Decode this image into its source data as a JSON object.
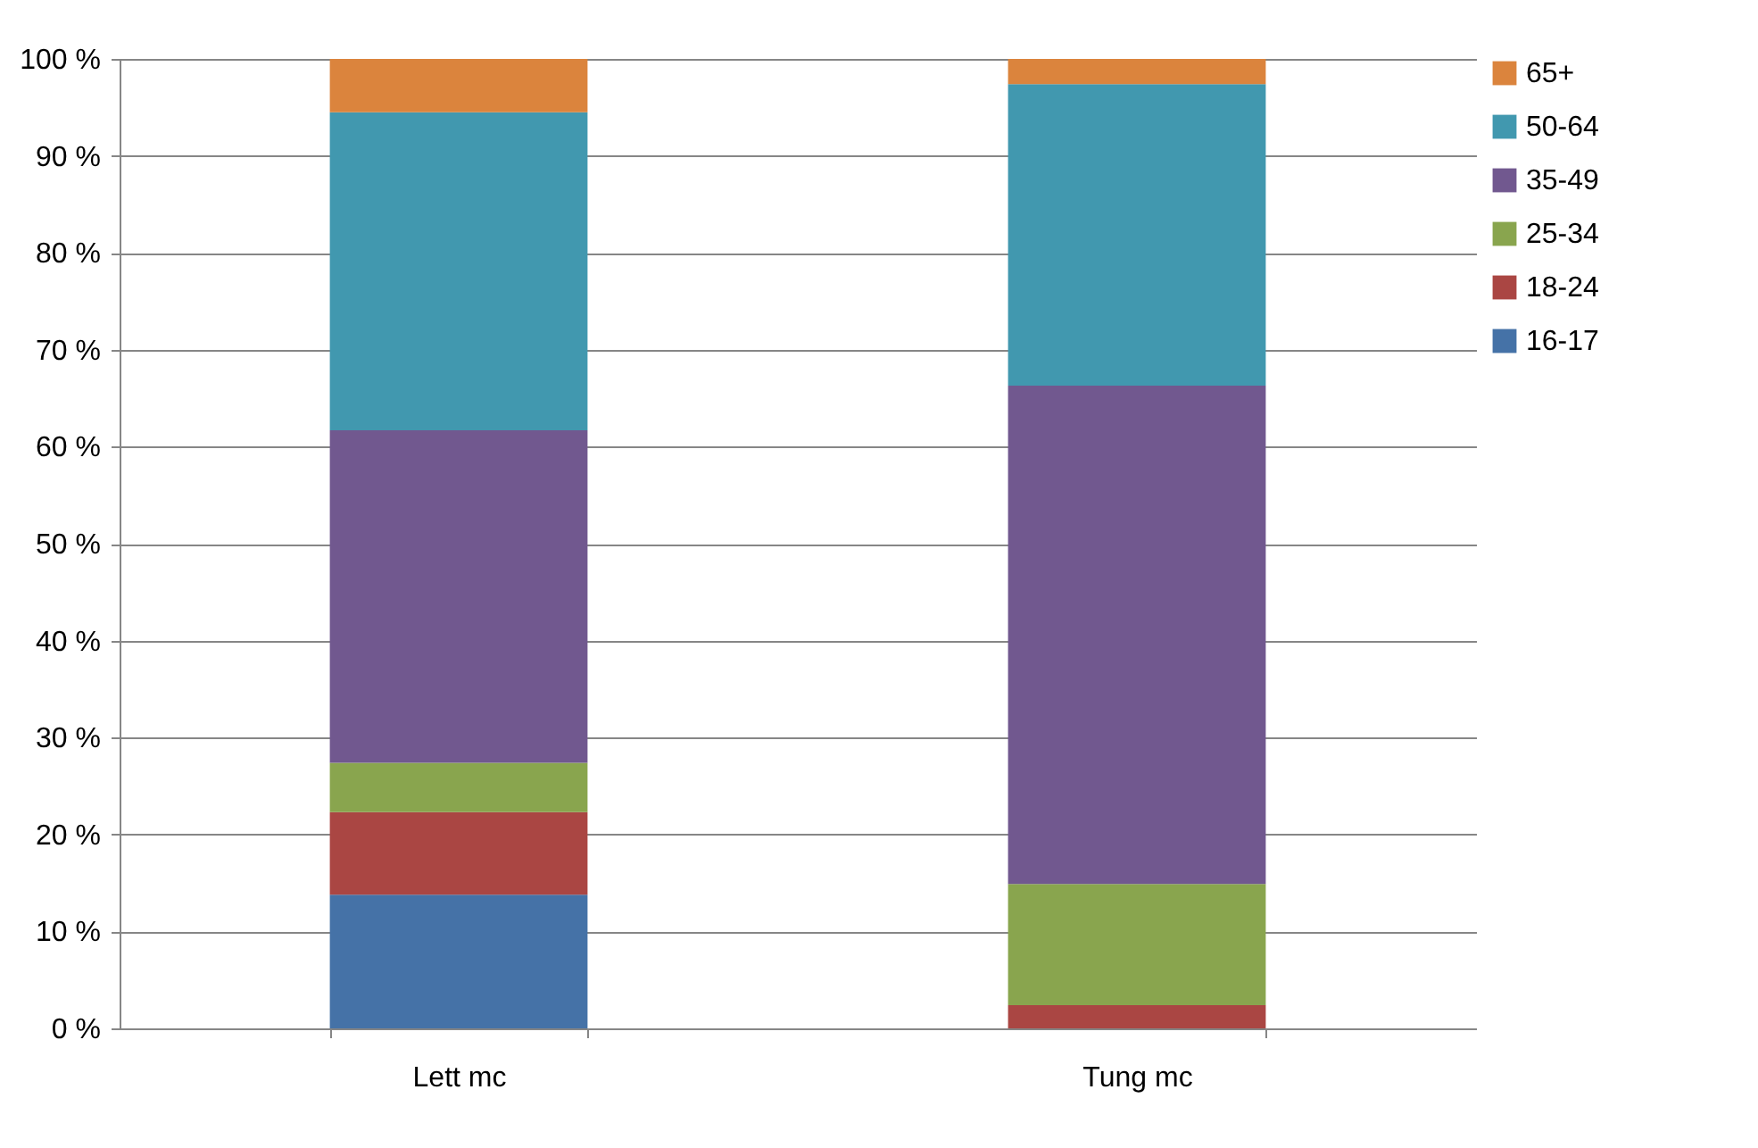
{
  "chart_data": {
    "type": "bar",
    "stacked": true,
    "categories": [
      "Lett mc",
      "Tung mc"
    ],
    "series": [
      {
        "name": "16-17",
        "color": "#4572a7",
        "values": [
          13.8,
          0
        ]
      },
      {
        "name": "18-24",
        "color": "#aa4643",
        "values": [
          8.5,
          2.4
        ]
      },
      {
        "name": "25-34",
        "color": "#89a54e",
        "values": [
          5.1,
          12.5
        ]
      },
      {
        "name": "35-49",
        "color": "#71588f",
        "values": [
          34.3,
          51.4
        ]
      },
      {
        "name": "50-64",
        "color": "#4198af",
        "values": [
          32.8,
          31.1
        ]
      },
      {
        "name": "65+",
        "color": "#db843d",
        "values": [
          5.5,
          2.6
        ]
      }
    ],
    "ylim": [
      0,
      100
    ],
    "yticks": [
      {
        "value": 0,
        "label": "0 %"
      },
      {
        "value": 10,
        "label": "10 %"
      },
      {
        "value": 20,
        "label": "20 %"
      },
      {
        "value": 30,
        "label": "30 %"
      },
      {
        "value": 40,
        "label": "40 %"
      },
      {
        "value": 50,
        "label": "50 %"
      },
      {
        "value": 60,
        "label": "60 %"
      },
      {
        "value": 70,
        "label": "70 %"
      },
      {
        "value": 80,
        "label": "80 %"
      },
      {
        "value": 90,
        "label": "90 %"
      },
      {
        "value": 100,
        "label": "100 %"
      }
    ],
    "grid": "y",
    "legend": "right"
  }
}
